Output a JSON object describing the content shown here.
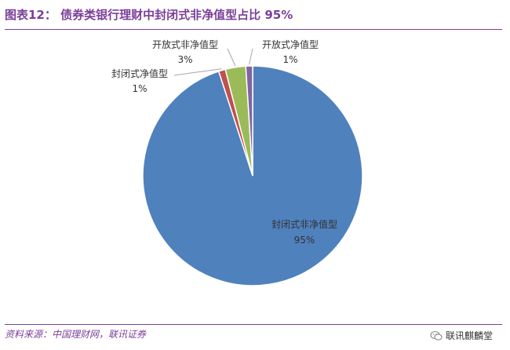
{
  "header": {
    "title": "图表12： 债券类银行理财中封闭式非净值型占比 95%"
  },
  "chart_data": {
    "type": "pie",
    "title": "",
    "categories": [
      "封闭式非净值型",
      "封闭式净值型",
      "开放式非净值型",
      "开放式净值型"
    ],
    "values": [
      95,
      1,
      3,
      1
    ],
    "value_labels": [
      "95%",
      "1%",
      "3%",
      "1%"
    ],
    "colors": [
      "#4f81bd",
      "#c0504d",
      "#9bbb59",
      "#8064a2"
    ],
    "start": "12 o'clock",
    "direction": "clockwise"
  },
  "footer": {
    "source": "资料来源：中国理财网，联讯证券",
    "brand": "联讯麒麟堂",
    "brand_icon": "wechat-icon"
  }
}
